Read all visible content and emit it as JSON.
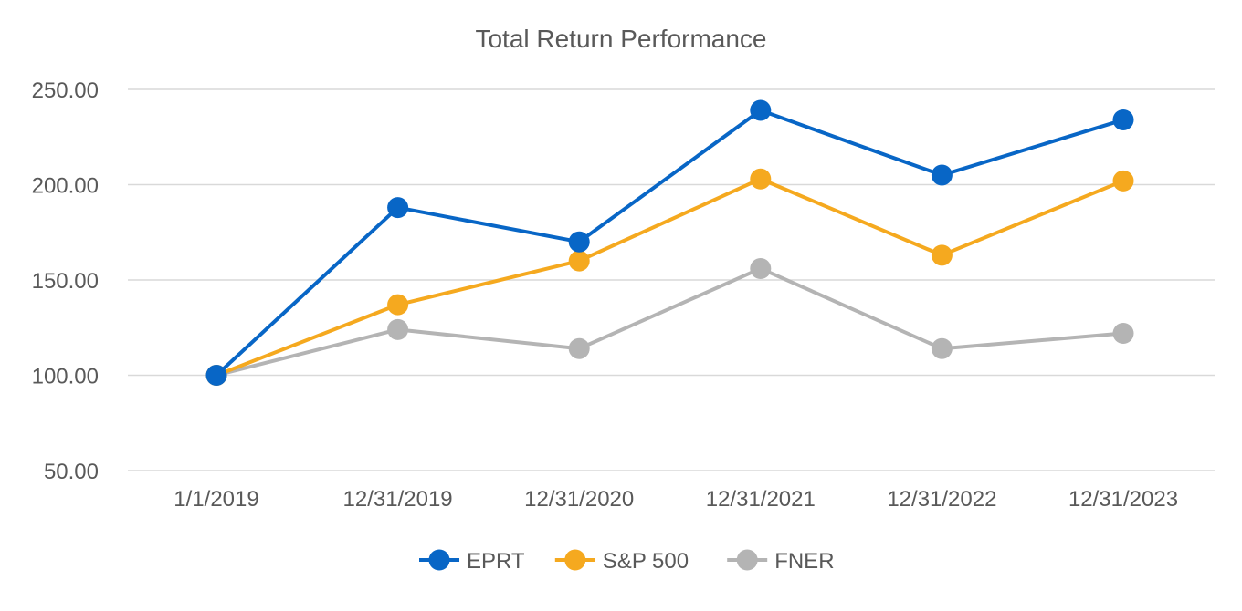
{
  "chart_data": {
    "type": "line",
    "title": "Total Return Performance",
    "xlabel": "",
    "ylabel": "",
    "categories": [
      "1/1/2019",
      "12/31/2019",
      "12/31/2020",
      "12/31/2021",
      "12/31/2022",
      "12/31/2023"
    ],
    "ylim": [
      50,
      250
    ],
    "yticks": [
      50,
      100,
      150,
      200,
      250
    ],
    "ytick_labels": [
      "50.00",
      "100.00",
      "150.00",
      "200.00",
      "250.00"
    ],
    "grid": true,
    "legend_position": "bottom",
    "series": [
      {
        "name": "EPRT",
        "color": "#0866C6",
        "values": [
          100,
          188,
          170,
          239,
          205,
          234
        ]
      },
      {
        "name": "S&P 500",
        "color": "#F5A91F",
        "values": [
          100,
          137,
          160,
          203,
          163,
          202
        ]
      },
      {
        "name": "FNER",
        "color": "#B4B4B4",
        "values": [
          100,
          124,
          114,
          156,
          114,
          122
        ]
      }
    ]
  }
}
